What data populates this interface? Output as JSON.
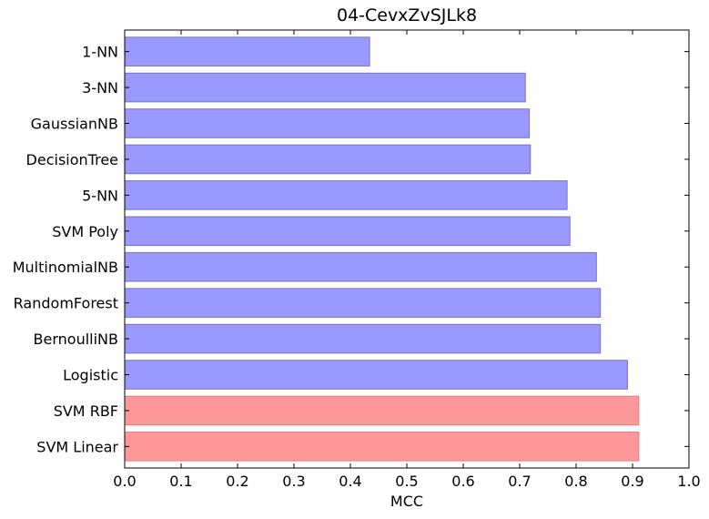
{
  "chart_data": {
    "type": "bar",
    "orientation": "horizontal",
    "title": "04-CevxZvSJLk8",
    "xlabel": "MCC",
    "ylabel": "",
    "xlim": [
      0.0,
      1.0
    ],
    "xticks": [
      "0.0",
      "0.1",
      "0.2",
      "0.3",
      "0.4",
      "0.5",
      "0.6",
      "0.7",
      "0.8",
      "0.9",
      "1.0"
    ],
    "grid": false,
    "categories": [
      "1-NN",
      "3-NN",
      "GaussianNB",
      "DecisionTree",
      "5-NN",
      "SVM Poly",
      "MultinomialNB",
      "RandomForest",
      "BernoulliNB",
      "Logistic",
      "SVM RBF",
      "SVM Linear"
    ],
    "values": [
      0.434,
      0.71,
      0.717,
      0.719,
      0.784,
      0.789,
      0.836,
      0.843,
      0.843,
      0.891,
      0.911,
      0.911
    ],
    "highlighted": [
      false,
      false,
      false,
      false,
      false,
      false,
      false,
      false,
      false,
      false,
      true,
      true
    ],
    "colors": {
      "bar_default": "#9999ff",
      "bar_default_edge": "#7373bf",
      "bar_highlight": "#ff9999",
      "bar_highlight_edge": "#e57a7a",
      "axis": "#000000"
    }
  }
}
